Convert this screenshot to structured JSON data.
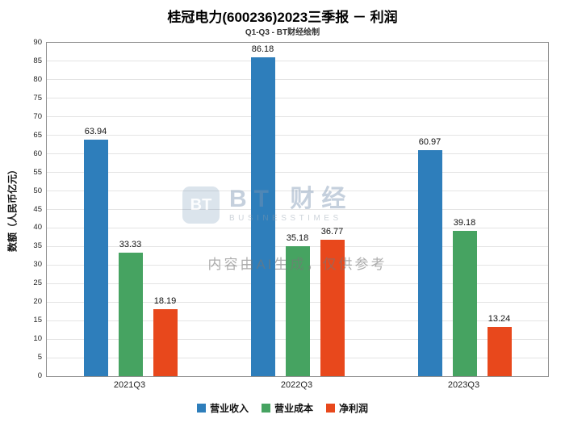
{
  "chart_data": {
    "type": "bar",
    "title": "桂冠电力(600236)2023三季报 － 利润",
    "subtitle": "Q1-Q3 - BT财经绘制",
    "xlabel": "",
    "ylabel": "数额（人民币亿元）",
    "categories": [
      "2021Q3",
      "2022Q3",
      "2023Q3"
    ],
    "series": [
      {
        "name": "营业收入",
        "color": "#2e7ebb",
        "values": [
          63.94,
          86.18,
          60.97
        ]
      },
      {
        "name": "营业成本",
        "color": "#46a361",
        "values": [
          33.33,
          35.18,
          39.18
        ]
      },
      {
        "name": "净利润",
        "color": "#e8481c",
        "values": [
          18.19,
          36.77,
          13.24
        ]
      }
    ],
    "ylim": [
      0,
      90
    ],
    "ytick_step": 5,
    "grid": true,
    "legend_position": "bottom"
  },
  "watermark": {
    "icon_text": "BT",
    "logo_main": "BT 财经",
    "logo_sub": "BUSINESSTIMES",
    "ai_note": "内容由AI生成，仅供参考"
  }
}
